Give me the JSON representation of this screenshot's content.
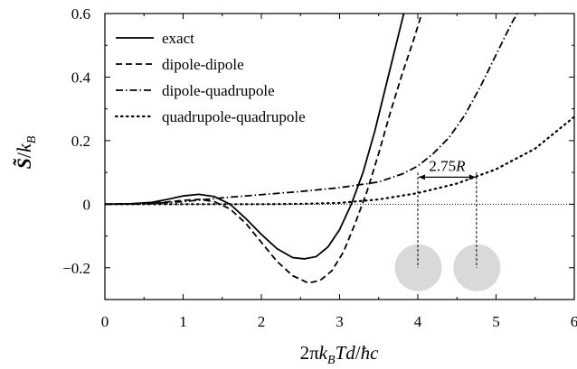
{
  "chart_data": {
    "type": "line",
    "xlabel": "2πk_BTd/ħc",
    "ylabel": "S̃/k_B",
    "xlim": [
      0,
      6
    ],
    "ylim": [
      -0.3,
      0.6
    ],
    "x_ticks": [
      0,
      1,
      2,
      3,
      4,
      5,
      6
    ],
    "y_ticks": [
      -0.2,
      0,
      0.2,
      0.4,
      0.6
    ],
    "x_tick_labels": [
      "0",
      "1",
      "2",
      "3",
      "4",
      "5",
      "6"
    ],
    "y_tick_labels": [
      "−0.2",
      "0",
      "0.2",
      "0.4",
      "0.6"
    ],
    "grid": false,
    "legend_position": "top-left",
    "zero_line": "dotted",
    "series": [
      {
        "name": "exact",
        "style": "solid",
        "points": [
          [
            0,
            0
          ],
          [
            0.3,
            0.001
          ],
          [
            0.6,
            0.006
          ],
          [
            0.8,
            0.015
          ],
          [
            1.0,
            0.026
          ],
          [
            1.2,
            0.031
          ],
          [
            1.4,
            0.024
          ],
          [
            1.6,
            0.0
          ],
          [
            1.8,
            -0.045
          ],
          [
            2.0,
            -0.095
          ],
          [
            2.2,
            -0.14
          ],
          [
            2.4,
            -0.168
          ],
          [
            2.55,
            -0.172
          ],
          [
            2.7,
            -0.165
          ],
          [
            2.85,
            -0.135
          ],
          [
            3.0,
            -0.08
          ],
          [
            3.15,
            0.0
          ],
          [
            3.3,
            0.1
          ],
          [
            3.45,
            0.23
          ],
          [
            3.6,
            0.38
          ],
          [
            3.75,
            0.53
          ],
          [
            3.82,
            0.6
          ]
        ]
      },
      {
        "name": "dipole-dipole",
        "style": "dashed",
        "points": [
          [
            0,
            0
          ],
          [
            0.5,
            0.002
          ],
          [
            0.8,
            0.007
          ],
          [
            1.0,
            0.012
          ],
          [
            1.2,
            0.015
          ],
          [
            1.4,
            0.008
          ],
          [
            1.6,
            -0.015
          ],
          [
            1.8,
            -0.06
          ],
          [
            2.0,
            -0.12
          ],
          [
            2.2,
            -0.18
          ],
          [
            2.4,
            -0.225
          ],
          [
            2.6,
            -0.248
          ],
          [
            2.75,
            -0.24
          ],
          [
            2.9,
            -0.21
          ],
          [
            3.05,
            -0.15
          ],
          [
            3.2,
            -0.06
          ],
          [
            3.35,
            0.04
          ],
          [
            3.5,
            0.16
          ],
          [
            3.65,
            0.29
          ],
          [
            3.8,
            0.41
          ],
          [
            3.95,
            0.52
          ],
          [
            4.05,
            0.6
          ]
        ]
      },
      {
        "name": "dipole-quadrupole",
        "style": "dashdot",
        "points": [
          [
            0,
            0
          ],
          [
            0.5,
            0.001
          ],
          [
            1.0,
            0.008
          ],
          [
            1.5,
            0.02
          ],
          [
            2.0,
            0.03
          ],
          [
            2.5,
            0.04
          ],
          [
            3.0,
            0.052
          ],
          [
            3.5,
            0.07
          ],
          [
            3.8,
            0.095
          ],
          [
            4.0,
            0.12
          ],
          [
            4.2,
            0.16
          ],
          [
            4.4,
            0.21
          ],
          [
            4.6,
            0.28
          ],
          [
            4.8,
            0.37
          ],
          [
            5.0,
            0.47
          ],
          [
            5.2,
            0.57
          ],
          [
            5.27,
            0.6
          ]
        ]
      },
      {
        "name": "quadrupole-quadrupole",
        "style": "dotted",
        "points": [
          [
            0,
            0
          ],
          [
            1.0,
            0.0
          ],
          [
            2.0,
            0.0
          ],
          [
            2.5,
            0.001
          ],
          [
            3.0,
            0.004
          ],
          [
            3.5,
            0.015
          ],
          [
            4.0,
            0.035
          ],
          [
            4.5,
            0.065
          ],
          [
            5.0,
            0.11
          ],
          [
            5.5,
            0.175
          ],
          [
            6.0,
            0.275
          ]
        ]
      }
    ],
    "annotation": {
      "label": "2.75R",
      "spheres_x": [
        4.0,
        4.75
      ],
      "sphere_center_y": -0.2,
      "arrow_y": 0.085,
      "vertical_dash_top_y": 0.1,
      "vertical_dash_bottom_y": -0.2,
      "sphere_color": "#d9d9d9"
    }
  }
}
